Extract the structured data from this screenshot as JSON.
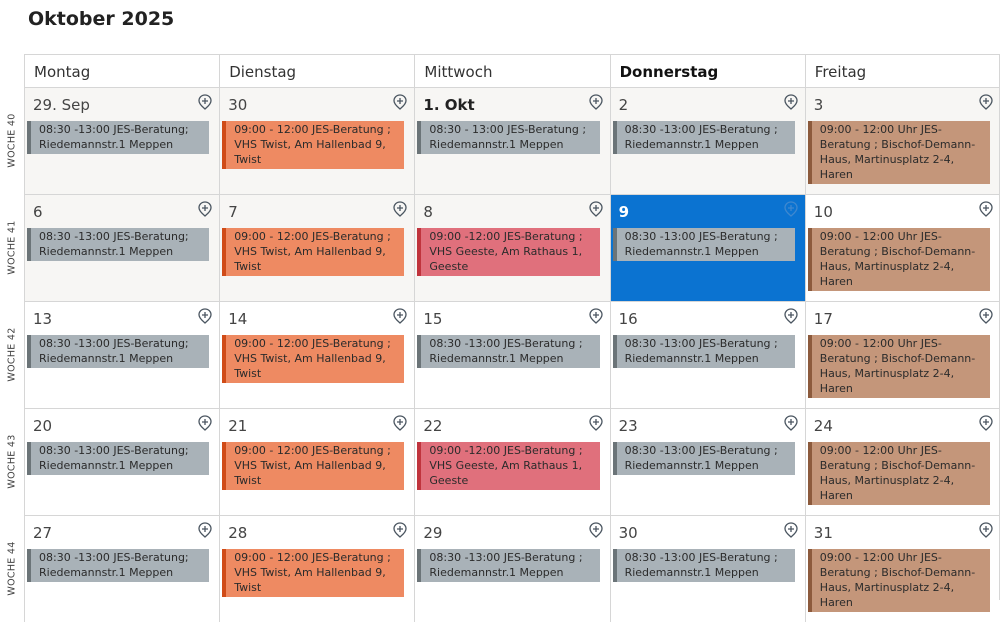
{
  "title": "Oktober 2025",
  "weekdays": [
    "Montag",
    "Dienstag",
    "Mittwoch",
    "Donnerstag",
    "Freitag"
  ],
  "today_weekday_index": 3,
  "weeks": [
    {
      "label": "WOCHE 40",
      "days": [
        {
          "label": "29. Sep",
          "past": true,
          "event": {
            "text": "08:30 -13:00 JES-Beratung; Riedemannstr.1 Meppen",
            "color": "grey"
          }
        },
        {
          "label": "30",
          "past": true,
          "event": {
            "text": "09:00 - 12:00 JES-Beratung ; VHS Twist, Am Hallenbad 9, Twist",
            "color": "orange"
          }
        },
        {
          "label": "1. Okt",
          "past": true,
          "bold": true,
          "event": {
            "text": "08:30 - 13:00 JES-Beratung ; Riedemannstr.1 Meppen",
            "color": "grey"
          }
        },
        {
          "label": "2",
          "past": true,
          "event": {
            "text": "08:30 -13:00 JES-Beratung ; Riedemannstr.1 Meppen",
            "color": "grey"
          }
        },
        {
          "label": "3",
          "past": true,
          "event": {
            "text": "09:00 - 12:00 Uhr JES-Beratung ; Bischof-Demann-Haus, Martinusplatz 2-4, Haren",
            "color": "brown"
          }
        }
      ]
    },
    {
      "label": "WOCHE 41",
      "days": [
        {
          "label": "6",
          "past": true,
          "event": {
            "text": "08:30 -13:00 JES-Beratung; Riedemannstr.1 Meppen",
            "color": "grey"
          }
        },
        {
          "label": "7",
          "past": true,
          "event": {
            "text": "09:00 - 12:00 JES-Beratung ; VHS Twist, Am Hallenbad 9, Twist",
            "color": "orange"
          }
        },
        {
          "label": "8",
          "past": true,
          "event": {
            "text": "09:00 -12:00 JES-Beratung ; VHS Geeste, Am Rathaus 1, Geeste",
            "color": "red"
          }
        },
        {
          "label": "9",
          "selected": true,
          "event": {
            "text": "08:30 -13:00 JES-Beratung ; Riedemannstr.1 Meppen",
            "color": "grey"
          }
        },
        {
          "label": "10",
          "event": {
            "text": "09:00 - 12:00 Uhr JES-Beratung ; Bischof-Demann-Haus, Martinusplatz 2-4, Haren",
            "color": "brown"
          }
        }
      ]
    },
    {
      "label": "WOCHE 42",
      "days": [
        {
          "label": "13",
          "event": {
            "text": "08:30 -13:00 JES-Beratung; Riedemannstr.1 Meppen",
            "color": "grey"
          }
        },
        {
          "label": "14",
          "event": {
            "text": "09:00 - 12:00 JES-Beratung ; VHS Twist, Am Hallenbad 9, Twist",
            "color": "orange"
          }
        },
        {
          "label": "15",
          "event": {
            "text": "08:30 -13:00 JES-Beratung ; Riedemannstr.1 Meppen",
            "color": "grey"
          }
        },
        {
          "label": "16",
          "event": {
            "text": "08:30 -13:00 JES-Beratung ; Riedemannstr.1 Meppen",
            "color": "grey"
          }
        },
        {
          "label": "17",
          "event": {
            "text": "09:00 - 12:00 Uhr JES-Beratung ; Bischof-Demann-Haus, Martinusplatz 2-4, Haren",
            "color": "brown"
          }
        }
      ]
    },
    {
      "label": "WOCHE 43",
      "days": [
        {
          "label": "20",
          "event": {
            "text": "08:30 -13:00 JES-Beratung; Riedemannstr.1 Meppen",
            "color": "grey"
          }
        },
        {
          "label": "21",
          "event": {
            "text": "09:00 - 12:00 JES-Beratung ; VHS Twist, Am Hallenbad 9, Twist",
            "color": "orange"
          }
        },
        {
          "label": "22",
          "event": {
            "text": "09:00 -12:00 JES-Beratung ; VHS Geeste, Am Rathaus 1, Geeste",
            "color": "red"
          }
        },
        {
          "label": "23",
          "event": {
            "text": "08:30 -13:00 JES-Beratung ; Riedemannstr.1 Meppen",
            "color": "grey"
          }
        },
        {
          "label": "24",
          "event": {
            "text": "09:00 - 12:00 Uhr JES-Beratung ; Bischof-Demann-Haus, Martinusplatz 2-4, Haren",
            "color": "brown"
          }
        }
      ]
    },
    {
      "label": "WOCHE 44",
      "days": [
        {
          "label": "27",
          "event": {
            "text": "08:30 -13:00 JES-Beratung; Riedemannstr.1 Meppen",
            "color": "grey"
          }
        },
        {
          "label": "28",
          "event": {
            "text": "09:00 - 12:00 JES-Beratung ; VHS Twist, Am Hallenbad 9, Twist",
            "color": "orange"
          }
        },
        {
          "label": "29",
          "event": {
            "text": "08:30 -13:00 JES-Beratung ; Riedemannstr.1 Meppen",
            "color": "grey"
          }
        },
        {
          "label": "30",
          "event": {
            "text": "08:30 -13:00 JES-Beratung ; Riedemannstr.1 Meppen",
            "color": "grey"
          }
        },
        {
          "label": "31",
          "event": {
            "text": "09:00 - 12:00 Uhr JES-Beratung ; Bischof-Demann-Haus, Martinusplatz 2-4, Haren",
            "color": "brown"
          }
        }
      ]
    }
  ],
  "icons": {
    "add_event": "add-event-icon"
  },
  "colors": {
    "selected": "#0b73d1",
    "grey": "#a9b2b8",
    "orange": "#ee8a62",
    "red": "#e0707c",
    "brown": "#c4967a"
  }
}
